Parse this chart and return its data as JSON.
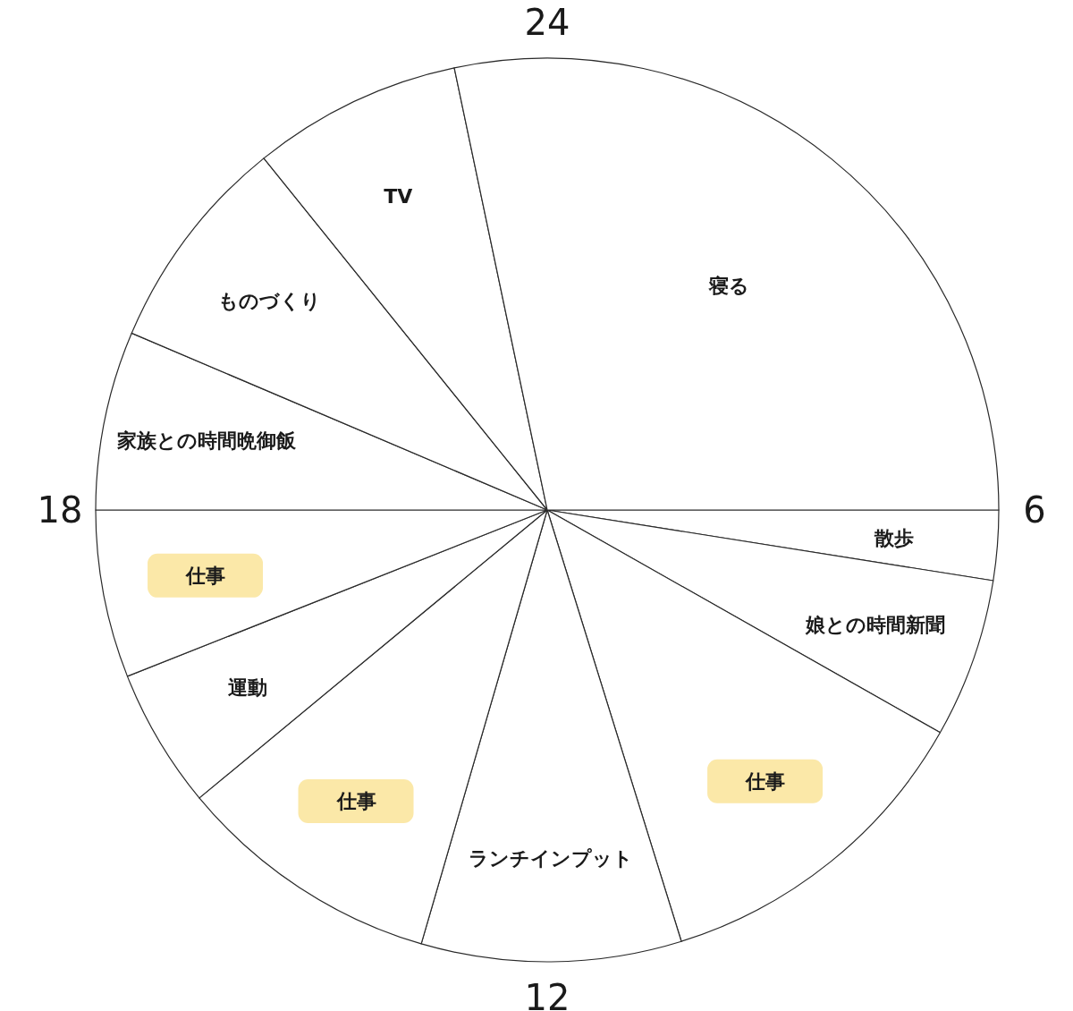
{
  "chart_data": {
    "type": "pie",
    "categories": [
      "散歩",
      "娘との時間新聞",
      "仕事",
      "ランチインプット",
      "仕事",
      "運動",
      "仕事",
      "家族との時間晩御飯",
      "ものづくり",
      "TV",
      "寝る"
    ],
    "values": [
      2.5,
      5.7,
      12.0,
      9.3,
      9.5,
      5.0,
      6.0,
      6.4,
      7.8,
      7.5,
      28.3
    ],
    "colors": [
      "#ffffff",
      "#ffffff",
      "#ffffff",
      "#ffffff",
      "#ffffff",
      "#ffffff",
      "#ffffff",
      "#ffffff",
      "#ffffff",
      "#ffffff",
      "#ffffff"
    ],
    "annotations": [
      "24",
      "6",
      "12",
      "18"
    ]
  }
}
